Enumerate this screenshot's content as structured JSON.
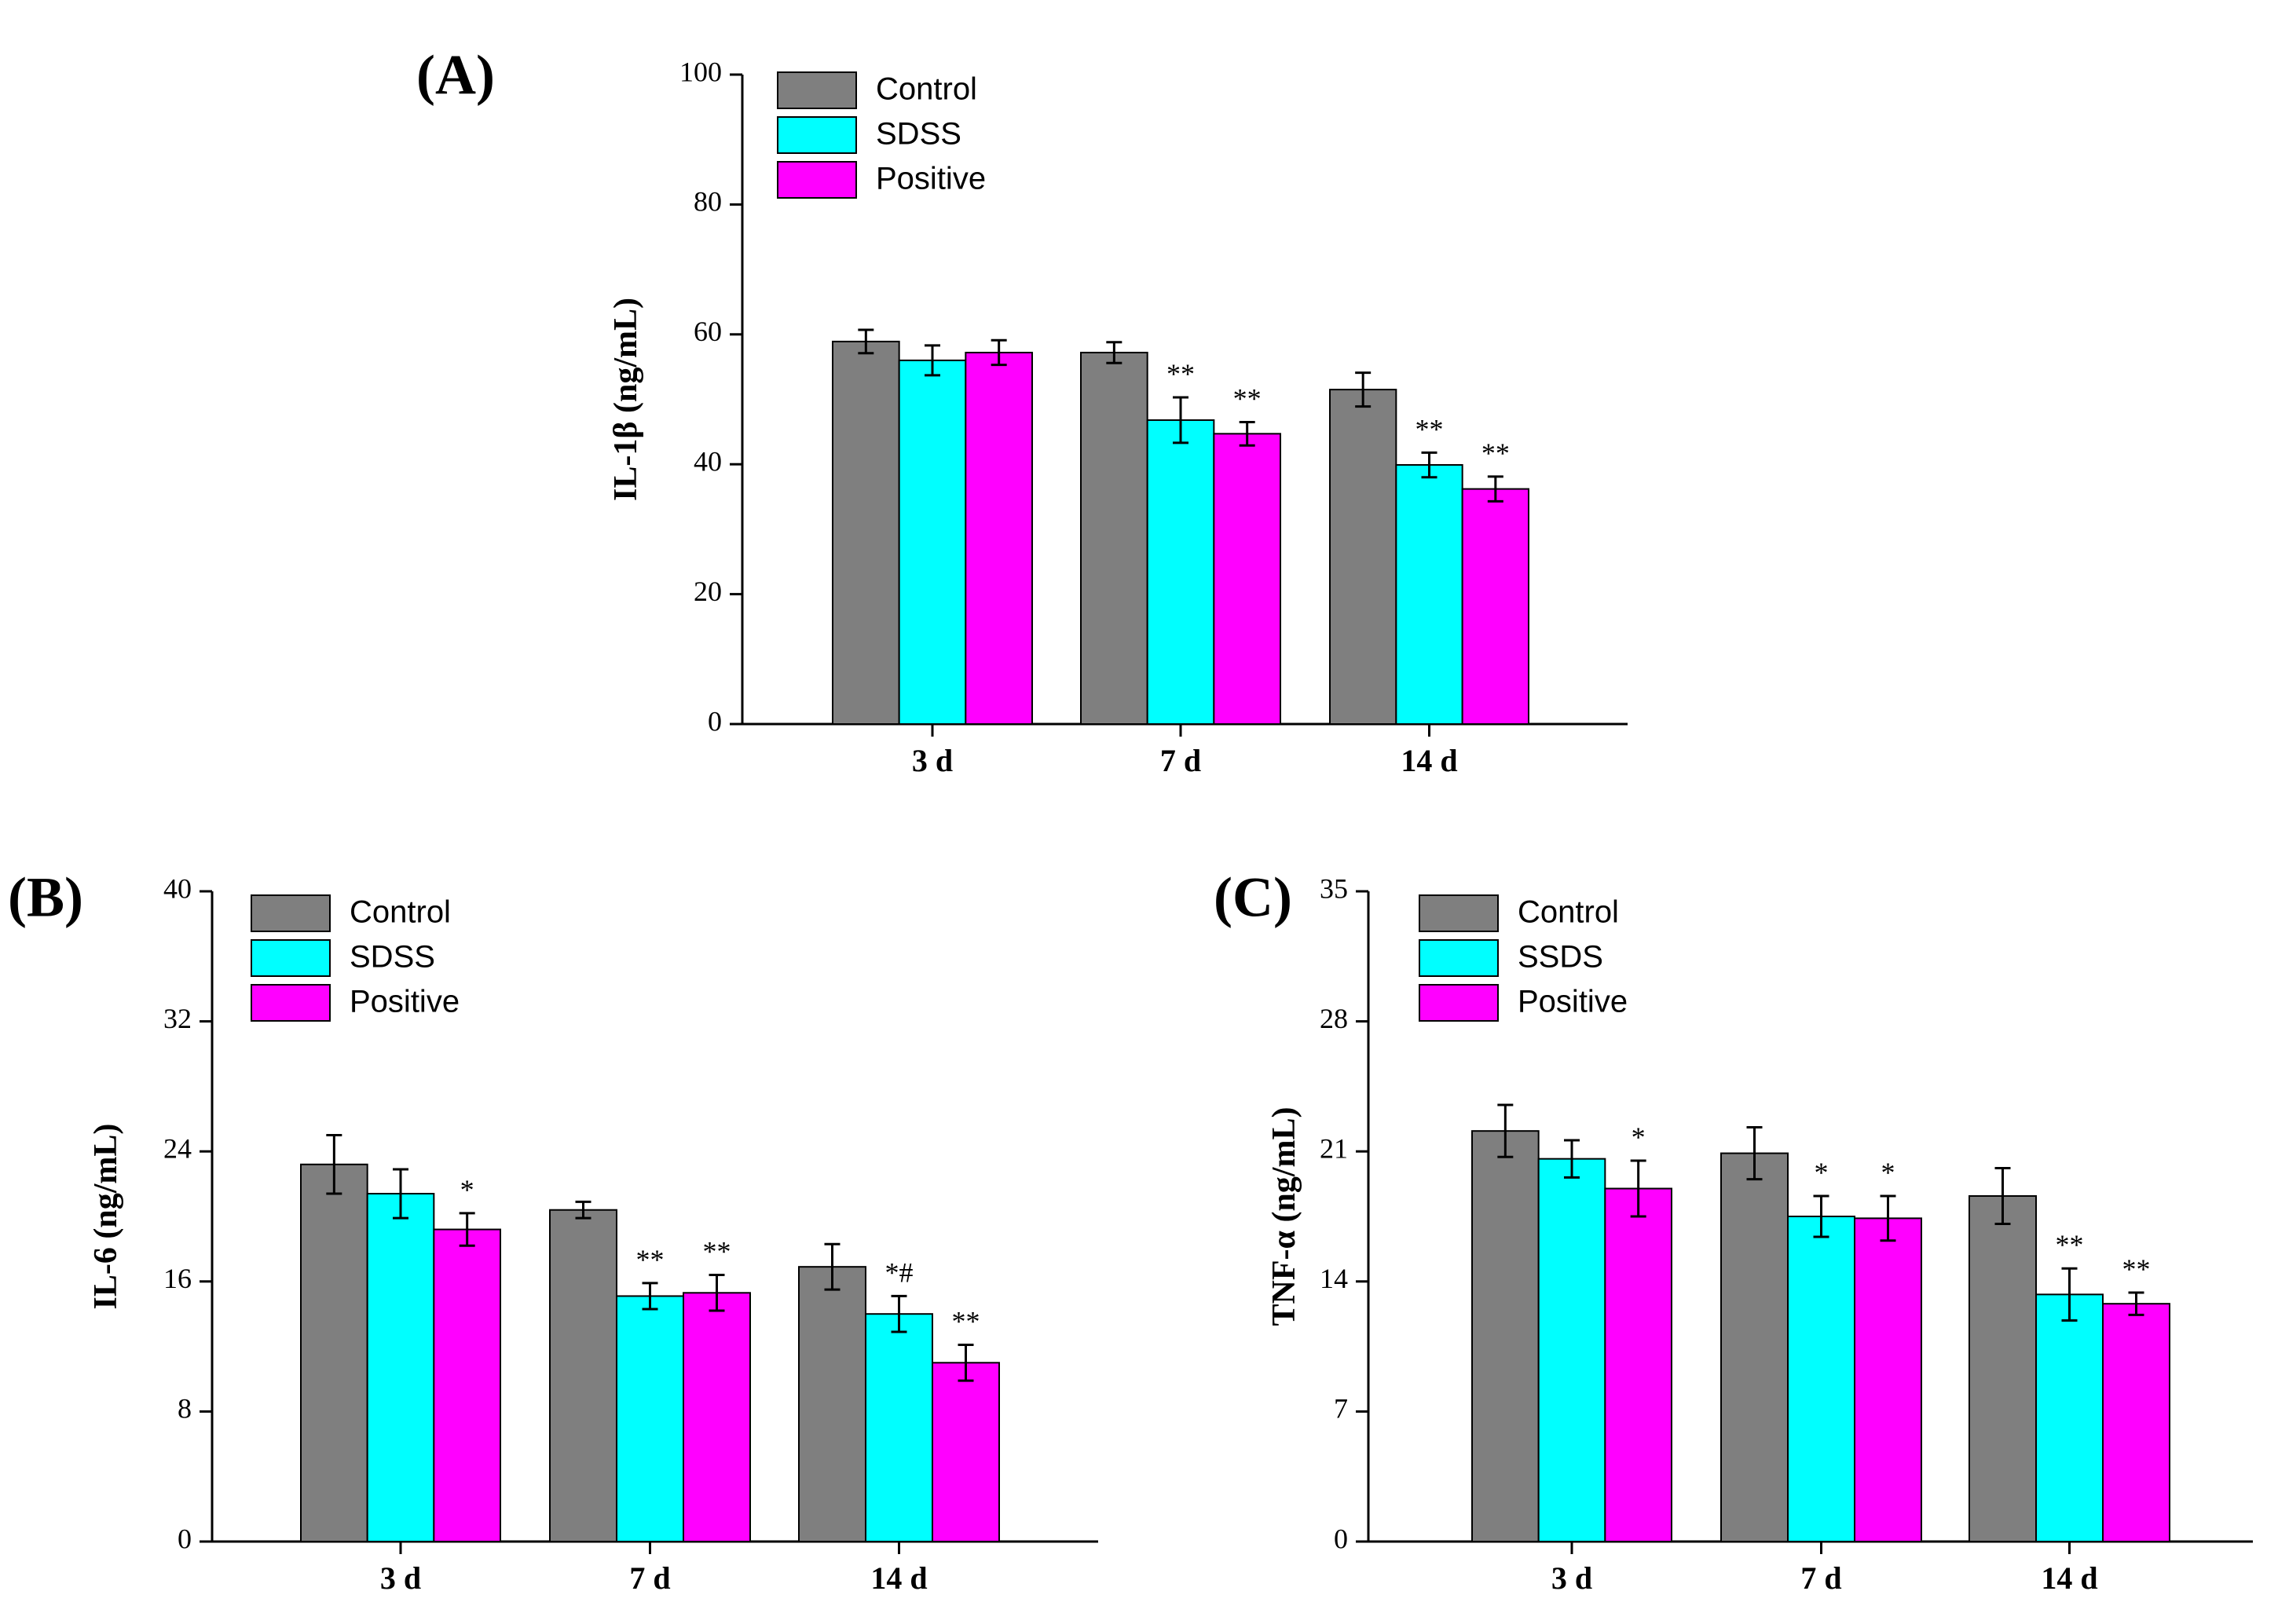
{
  "colors": {
    "Control": "#7f7f7f",
    "SDSS": "#00ffff",
    "SSDS": "#00ffff",
    "Positive": "#ff00ff"
  },
  "chart_data": [
    {
      "panel": "(A)",
      "type": "bar",
      "ylabel": "IL-1β (ng/mL)",
      "ylim": [
        0,
        100
      ],
      "yticks": [
        0,
        20,
        40,
        60,
        80,
        100
      ],
      "categories": [
        "3 d",
        "7 d",
        "14 d"
      ],
      "legend": [
        "Control",
        "SDSS",
        "Positive"
      ],
      "series": [
        {
          "name": "Control",
          "values": [
            58.9,
            57.2,
            51.5
          ],
          "errors": [
            1.8,
            1.6,
            2.6
          ],
          "sig": [
            "",
            "",
            ""
          ]
        },
        {
          "name": "SDSS",
          "values": [
            56.0,
            46.8,
            39.9
          ],
          "errors": [
            2.3,
            3.5,
            1.9
          ],
          "sig": [
            "",
            "**",
            "**"
          ]
        },
        {
          "name": "Positive",
          "values": [
            57.2,
            44.7,
            36.2
          ],
          "errors": [
            1.9,
            1.8,
            1.9
          ],
          "sig": [
            "",
            "**",
            "**"
          ]
        }
      ]
    },
    {
      "panel": "(B)",
      "type": "bar",
      "ylabel": "IL-6 (ng/mL)",
      "ylim": [
        0,
        40
      ],
      "yticks": [
        0,
        8,
        16,
        24,
        32,
        40
      ],
      "categories": [
        "3 d",
        "7 d",
        "14 d"
      ],
      "legend": [
        "Control",
        "SDSS",
        "Positive"
      ],
      "series": [
        {
          "name": "Control",
          "values": [
            23.2,
            20.4,
            16.9
          ],
          "errors": [
            1.8,
            0.5,
            1.4
          ],
          "sig": [
            "",
            "",
            ""
          ]
        },
        {
          "name": "SDSS",
          "values": [
            21.4,
            15.1,
            14.0
          ],
          "errors": [
            1.5,
            0.8,
            1.1
          ],
          "sig": [
            "",
            "**",
            "*#"
          ]
        },
        {
          "name": "Positive",
          "values": [
            19.2,
            15.3,
            11.0
          ],
          "errors": [
            1.0,
            1.1,
            1.1
          ],
          "sig": [
            "*",
            "**",
            "**"
          ]
        }
      ]
    },
    {
      "panel": "(C)",
      "type": "bar",
      "ylabel": "TNF-α (ng/mL)",
      "ylim": [
        0,
        35
      ],
      "yticks": [
        0,
        7,
        14,
        21,
        28,
        35
      ],
      "categories": [
        "3 d",
        "7 d",
        "14 d"
      ],
      "legend": [
        "Control",
        "SSDS",
        "Positive"
      ],
      "series": [
        {
          "name": "Control",
          "values": [
            22.1,
            20.9,
            18.6
          ],
          "errors": [
            1.4,
            1.4,
            1.5
          ],
          "sig": [
            "",
            "",
            ""
          ]
        },
        {
          "name": "SSDS",
          "values": [
            20.6,
            17.5,
            13.3
          ],
          "errors": [
            1.0,
            1.1,
            1.4
          ],
          "sig": [
            "",
            "*",
            "**"
          ]
        },
        {
          "name": "Positive",
          "values": [
            19.0,
            17.4,
            12.8
          ],
          "errors": [
            1.5,
            1.2,
            0.6
          ],
          "sig": [
            "*",
            "*",
            "**"
          ]
        }
      ]
    }
  ]
}
